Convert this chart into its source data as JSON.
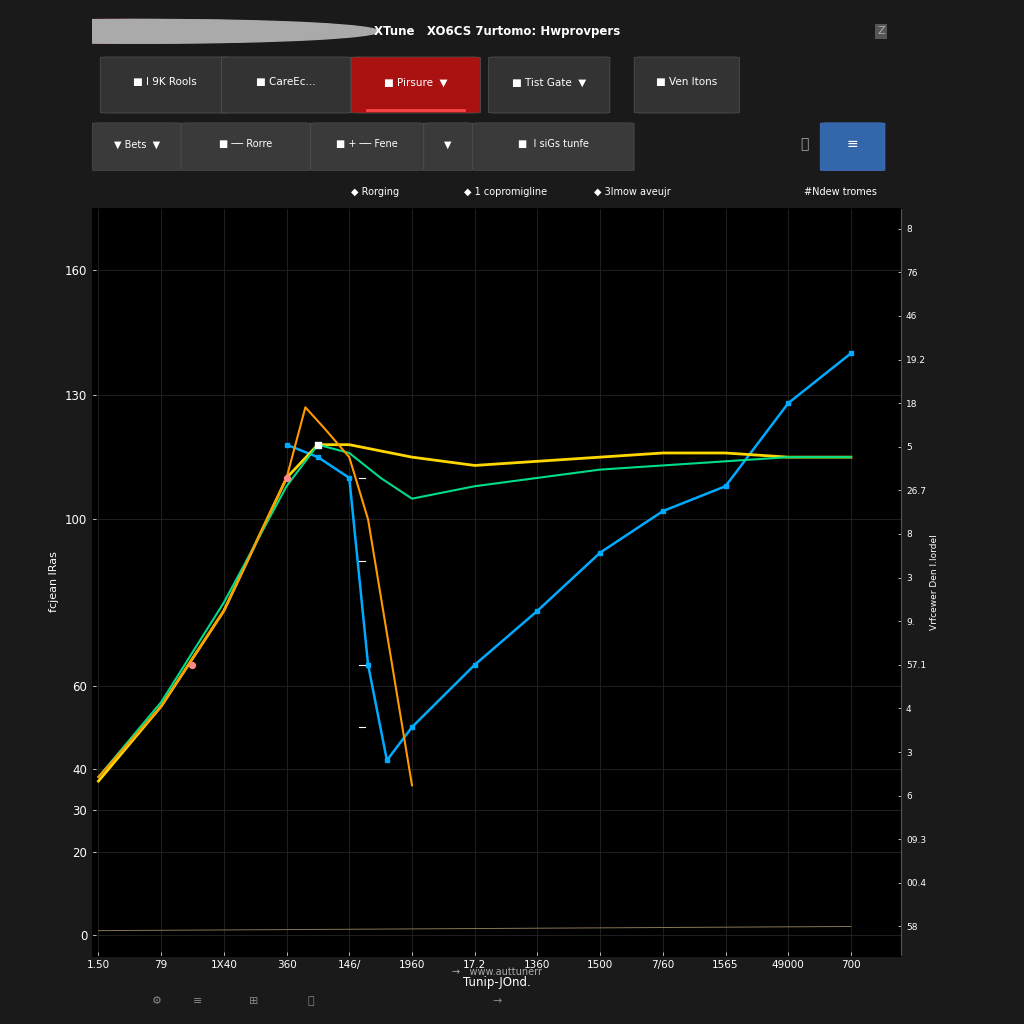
{
  "title": "XTune   XO6CS 7urtomo: Hwprovpers",
  "xlabel": "Tunip-JOnd.",
  "ylabel": "fcjean lRas",
  "bg_color": "#111111",
  "chart_bg": "#000000",
  "grid_color": "#252525",
  "x_ticks": [
    "1.50",
    "79",
    "1X40",
    "360",
    "146/",
    "1960",
    "17.2",
    "1360",
    "1500",
    "7/60",
    "1565",
    "49000",
    "700"
  ],
  "y_tick_positions": [
    0,
    20,
    30,
    40,
    60,
    100,
    130,
    160
  ],
  "right_y_labels": [
    "8",
    "76",
    "46",
    "19.2",
    "18",
    "5",
    "26.7",
    "8",
    "3",
    "9.",
    "57.1",
    "4",
    "3",
    "6",
    "09.3",
    "00.4",
    "58"
  ],
  "legend_items": [
    "Rorging",
    "1 copromigline",
    "3lmow aveujr"
  ],
  "legend_colors": [
    "#00cc00",
    "#cccccc",
    "#00aacc"
  ],
  "sidebar_label": "#Ndew tromes",
  "right_axis_label": "Vrfcewer Den l.lordel",
  "hp_line": {
    "x": [
      0,
      1,
      2,
      3,
      3.5,
      4,
      5,
      6,
      7,
      8,
      9,
      10,
      11,
      12
    ],
    "y": [
      37,
      55,
      78,
      110,
      118,
      118,
      115,
      113,
      114,
      115,
      116,
      116,
      115,
      115
    ],
    "color": "#ffd700"
  },
  "green_line": {
    "x": [
      0,
      1,
      2,
      3,
      3.5,
      4,
      4.5,
      5,
      6,
      7,
      8,
      9,
      10,
      11,
      12
    ],
    "y": [
      38,
      56,
      80,
      108,
      118,
      116,
      110,
      105,
      108,
      110,
      112,
      113,
      114,
      115,
      115
    ],
    "color": "#00dd88"
  },
  "blue_line": {
    "x": [
      3,
      3.5,
      4,
      4.3,
      4.6,
      5,
      6,
      7,
      8,
      9,
      10,
      11,
      12
    ],
    "y": [
      118,
      115,
      110,
      65,
      42,
      50,
      65,
      78,
      92,
      102,
      108,
      128,
      140
    ],
    "color": "#00aaff"
  },
  "orange_line": {
    "x": [
      0,
      1,
      2,
      3,
      3.3,
      3.6,
      4,
      4.3,
      5
    ],
    "y": [
      38,
      55,
      78,
      110,
      127,
      122,
      115,
      100,
      36
    ],
    "color": "#ff9900"
  },
  "flat_line": {
    "x": [
      0,
      12
    ],
    "y": [
      1,
      2
    ],
    "color": "#887755"
  }
}
